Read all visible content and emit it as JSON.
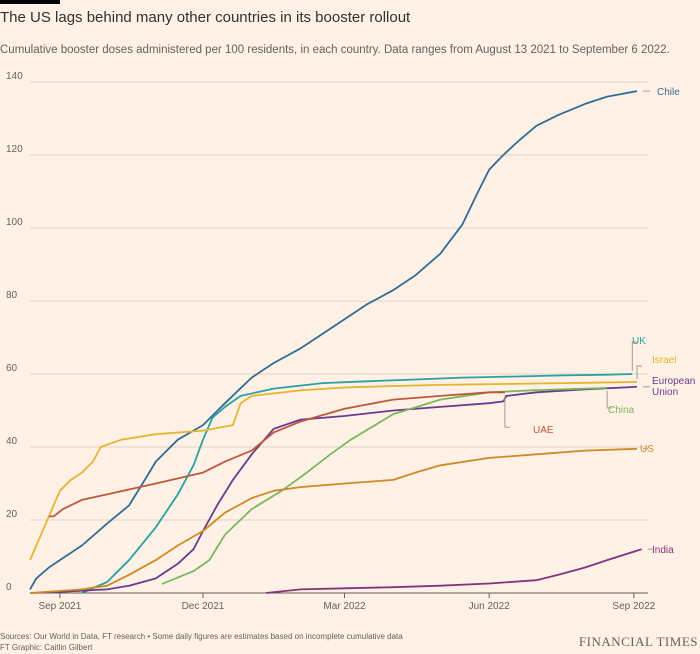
{
  "title": "The US lags behind many other countries in its booster rollout",
  "subtitle": "Cumulative booster doses administered per 100 residents, in each country. Data ranges from August 13 2021 to September 6 2022.",
  "footer": {
    "sources": "Sources: Our World in Data, FT research • Some daily figures are estimates based on incomplete cumulative data",
    "graphic": "FT Graphic: Caitlin Gilbert"
  },
  "brand": "FINANCIAL TIMES",
  "chart_data": {
    "type": "line",
    "xlabel": "",
    "ylabel": "",
    "ylim": [
      0,
      140
    ],
    "xlim": [
      "2021-08-13",
      "2022-09-10"
    ],
    "yticks": [
      0,
      20,
      40,
      60,
      80,
      100,
      120,
      140
    ],
    "xticks": [
      {
        "date": "2021-09-01",
        "label": "Sep 2021"
      },
      {
        "date": "2021-12-01",
        "label": "Dec 2021"
      },
      {
        "date": "2022-03-01",
        "label": "Mar 2022"
      },
      {
        "date": "2022-06-01",
        "label": "Jun 2022"
      },
      {
        "date": "2022-09-01",
        "label": "Sep 2022"
      }
    ],
    "grid": "horizontal",
    "series": [
      {
        "name": "Chile",
        "color": "#336b96",
        "points": [
          [
            "2021-08-13",
            1
          ],
          [
            "2021-08-17",
            4
          ],
          [
            "2021-08-25",
            7
          ],
          [
            "2021-09-01",
            9
          ],
          [
            "2021-09-15",
            13
          ],
          [
            "2021-10-01",
            19
          ],
          [
            "2021-10-15",
            24
          ],
          [
            "2021-10-25",
            31
          ],
          [
            "2021-11-01",
            36
          ],
          [
            "2021-11-15",
            42
          ],
          [
            "2021-12-01",
            46
          ],
          [
            "2021-12-15",
            52
          ],
          [
            "2022-01-01",
            59
          ],
          [
            "2022-01-15",
            63
          ],
          [
            "2022-02-01",
            67
          ],
          [
            "2022-02-15",
            71
          ],
          [
            "2022-03-01",
            75
          ],
          [
            "2022-03-15",
            79
          ],
          [
            "2022-04-01",
            83
          ],
          [
            "2022-04-15",
            87
          ],
          [
            "2022-05-01",
            93
          ],
          [
            "2022-05-15",
            101
          ],
          [
            "2022-05-25",
            110
          ],
          [
            "2022-06-01",
            116
          ],
          [
            "2022-06-10",
            120
          ],
          [
            "2022-06-20",
            124
          ],
          [
            "2022-07-01",
            128
          ],
          [
            "2022-07-15",
            131
          ],
          [
            "2022-08-01",
            134
          ],
          [
            "2022-08-15",
            136
          ],
          [
            "2022-09-03",
            137.5
          ]
        ]
      },
      {
        "name": "UK",
        "color": "#2aa0a0",
        "points": [
          [
            "2021-09-15",
            0
          ],
          [
            "2021-10-01",
            3
          ],
          [
            "2021-10-15",
            9
          ],
          [
            "2021-11-01",
            18
          ],
          [
            "2021-11-15",
            27
          ],
          [
            "2021-11-25",
            35
          ],
          [
            "2021-12-01",
            42
          ],
          [
            "2021-12-07",
            48
          ],
          [
            "2021-12-15",
            51
          ],
          [
            "2021-12-25",
            54
          ],
          [
            "2022-01-15",
            56
          ],
          [
            "2022-02-15",
            57.5
          ],
          [
            "2022-03-15",
            58
          ],
          [
            "2022-04-15",
            58.5
          ],
          [
            "2022-05-15",
            59
          ],
          [
            "2022-06-15",
            59.3
          ],
          [
            "2022-07-15",
            59.6
          ],
          [
            "2022-08-15",
            59.8
          ],
          [
            "2022-08-31",
            60
          ]
        ]
      },
      {
        "name": "Israel",
        "color": "#e6b42e",
        "points": [
          [
            "2021-08-13",
            9
          ],
          [
            "2021-08-17",
            13
          ],
          [
            "2021-08-22",
            18
          ],
          [
            "2021-08-28",
            24
          ],
          [
            "2021-09-01",
            28
          ],
          [
            "2021-09-08",
            31
          ],
          [
            "2021-09-15",
            33
          ],
          [
            "2021-09-22",
            36
          ],
          [
            "2021-09-27",
            40
          ],
          [
            "2021-10-10",
            42
          ],
          [
            "2021-11-01",
            43.5
          ],
          [
            "2021-12-01",
            44.5
          ],
          [
            "2021-12-20",
            46
          ],
          [
            "2021-12-25",
            52
          ],
          [
            "2022-01-01",
            54
          ],
          [
            "2022-02-01",
            55.5
          ],
          [
            "2022-03-01",
            56.3
          ],
          [
            "2022-04-01",
            56.7
          ],
          [
            "2022-05-01",
            57
          ],
          [
            "2022-06-01",
            57.2
          ],
          [
            "2022-07-01",
            57.4
          ],
          [
            "2022-08-01",
            57.6
          ],
          [
            "2022-09-03",
            57.8
          ]
        ]
      },
      {
        "name": "European Union",
        "color": "#6b3a8e",
        "points": [
          [
            "2021-08-13",
            0
          ],
          [
            "2021-09-01",
            0.3
          ],
          [
            "2021-10-01",
            1
          ],
          [
            "2021-10-15",
            2
          ],
          [
            "2021-11-01",
            4
          ],
          [
            "2021-11-15",
            8
          ],
          [
            "2021-11-25",
            12
          ],
          [
            "2021-12-01",
            17
          ],
          [
            "2021-12-10",
            24
          ],
          [
            "2021-12-20",
            31
          ],
          [
            "2022-01-01",
            38
          ],
          [
            "2022-01-15",
            45
          ],
          [
            "2022-02-01",
            47.5
          ],
          [
            "2022-03-01",
            48.5
          ],
          [
            "2022-04-01",
            50
          ],
          [
            "2022-05-01",
            51
          ],
          [
            "2022-06-01",
            52
          ],
          [
            "2022-06-10",
            52.5
          ],
          [
            "2022-06-12",
            54
          ],
          [
            "2022-07-01",
            55
          ],
          [
            "2022-08-01",
            55.8
          ],
          [
            "2022-09-03",
            56.5
          ]
        ]
      },
      {
        "name": "China",
        "color": "#7ab85c",
        "points": [
          [
            "2021-11-05",
            2.5
          ],
          [
            "2021-11-25",
            6
          ],
          [
            "2021-12-05",
            9
          ],
          [
            "2021-12-15",
            16
          ],
          [
            "2022-01-01",
            23
          ],
          [
            "2022-01-20",
            28
          ],
          [
            "2022-02-05",
            33
          ],
          [
            "2022-02-20",
            38
          ],
          [
            "2022-03-05",
            42
          ],
          [
            "2022-04-01",
            49
          ],
          [
            "2022-05-01",
            53
          ],
          [
            "2022-06-01",
            55
          ],
          [
            "2022-07-01",
            55.6
          ],
          [
            "2022-08-01",
            56
          ],
          [
            "2022-08-15",
            56.2
          ]
        ]
      },
      {
        "name": "UAE",
        "color": "#c0573d",
        "points": [
          [
            "2021-08-25",
            21
          ],
          [
            "2021-08-28",
            21
          ],
          [
            "2021-09-03",
            23
          ],
          [
            "2021-09-15",
            25.5
          ],
          [
            "2021-10-01",
            27
          ],
          [
            "2021-11-01",
            30
          ],
          [
            "2021-12-01",
            33
          ],
          [
            "2021-12-15",
            36
          ],
          [
            "2022-01-01",
            39
          ],
          [
            "2022-01-15",
            44
          ],
          [
            "2022-02-01",
            47
          ],
          [
            "2022-03-01",
            50.5
          ],
          [
            "2022-04-01",
            53
          ],
          [
            "2022-05-01",
            54
          ],
          [
            "2022-06-01",
            55
          ],
          [
            "2022-06-11",
            55
          ]
        ]
      },
      {
        "name": "US",
        "color": "#d08a25",
        "points": [
          [
            "2021-08-13",
            0
          ],
          [
            "2021-09-15",
            1
          ],
          [
            "2021-10-01",
            2
          ],
          [
            "2021-10-15",
            5
          ],
          [
            "2021-11-01",
            9
          ],
          [
            "2021-11-15",
            13
          ],
          [
            "2021-12-01",
            17
          ],
          [
            "2021-12-15",
            22
          ],
          [
            "2022-01-01",
            26
          ],
          [
            "2022-01-15",
            28
          ],
          [
            "2022-02-01",
            29
          ],
          [
            "2022-03-01",
            30
          ],
          [
            "2022-04-01",
            31
          ],
          [
            "2022-04-15",
            33
          ],
          [
            "2022-05-01",
            35
          ],
          [
            "2022-06-01",
            37
          ],
          [
            "2022-07-01",
            38
          ],
          [
            "2022-08-01",
            39
          ],
          [
            "2022-09-03",
            39.5
          ]
        ]
      },
      {
        "name": "India",
        "color": "#86327c",
        "points": [
          [
            "2022-01-10",
            0
          ],
          [
            "2022-02-01",
            1
          ],
          [
            "2022-03-01",
            1.3
          ],
          [
            "2022-04-01",
            1.6
          ],
          [
            "2022-05-01",
            2
          ],
          [
            "2022-06-01",
            2.6
          ],
          [
            "2022-07-01",
            3.5
          ],
          [
            "2022-07-15",
            5
          ],
          [
            "2022-08-01",
            7
          ],
          [
            "2022-08-15",
            9
          ],
          [
            "2022-09-06",
            12
          ]
        ]
      }
    ],
    "labels": [
      {
        "series": "Chile",
        "text": "Chile",
        "color": "#336b96"
      },
      {
        "series": "UK",
        "text": "UK",
        "color": "#2aa0a0"
      },
      {
        "series": "Israel",
        "text": "Israel",
        "color": "#e6b42e"
      },
      {
        "series": "European Union",
        "text": "European Union",
        "color": "#6b3a8e"
      },
      {
        "series": "China",
        "text": "China",
        "color": "#7ab85c"
      },
      {
        "series": "UAE",
        "text": "UAE",
        "color": "#c0573d"
      },
      {
        "series": "US",
        "text": "US",
        "color": "#d08a25"
      },
      {
        "series": "India",
        "text": "India",
        "color": "#86327c"
      }
    ]
  }
}
